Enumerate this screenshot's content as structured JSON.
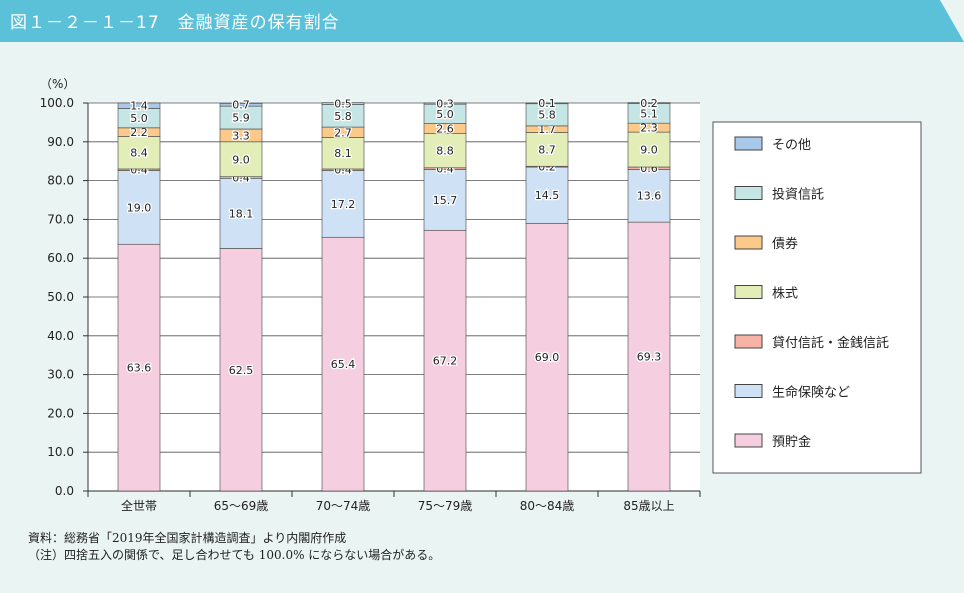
{
  "header": {
    "title": "図１－２－１－17　金融資産の保有割合",
    "color": "#5bc1d9"
  },
  "chart_data": {
    "type": "bar",
    "stacked": true,
    "ylabel": "（%）",
    "ylim": [
      0,
      100
    ],
    "yticks": [
      "0.0",
      "10.0",
      "20.0",
      "30.0",
      "40.0",
      "50.0",
      "60.0",
      "70.0",
      "80.0",
      "90.0",
      "100.0"
    ],
    "categories": [
      "全世帯",
      "65～69歳",
      "70～74歳",
      "75～79歳",
      "80～84歳",
      "85歳以上"
    ],
    "series": [
      {
        "name": "預貯金",
        "color": "#f5cfe0",
        "values": [
          63.6,
          62.5,
          65.4,
          67.2,
          69.0,
          69.3
        ]
      },
      {
        "name": "生命保険など",
        "color": "#cfe2f5",
        "values": [
          19.0,
          18.1,
          17.2,
          15.7,
          14.5,
          13.6
        ]
      },
      {
        "name": "貸付信託・金銭信託",
        "color": "#f6b3a6",
        "values": [
          0.4,
          0.4,
          0.4,
          0.4,
          0.2,
          0.6
        ]
      },
      {
        "name": "株式",
        "color": "#e2edb8",
        "values": [
          8.4,
          9.0,
          8.1,
          8.8,
          8.7,
          9.0
        ]
      },
      {
        "name": "債券",
        "color": "#fbc98a",
        "values": [
          2.2,
          3.3,
          2.7,
          2.6,
          1.7,
          2.3
        ]
      },
      {
        "name": "投資信託",
        "color": "#c6e6e6",
        "values": [
          5.0,
          5.9,
          5.8,
          5.0,
          5.8,
          5.1
        ]
      },
      {
        "name": "その他",
        "color": "#a9c8ea",
        "values": [
          1.4,
          0.7,
          0.5,
          0.3,
          0.1,
          0.2
        ]
      }
    ],
    "legend_placement": "right",
    "grid": true
  },
  "notes": [
    "資料：総務省「2019年全国家計構造調査」より内閣府作成",
    "（注）四捨五入の関係で、足し合わせても 100.0% にならない場合がある。"
  ]
}
